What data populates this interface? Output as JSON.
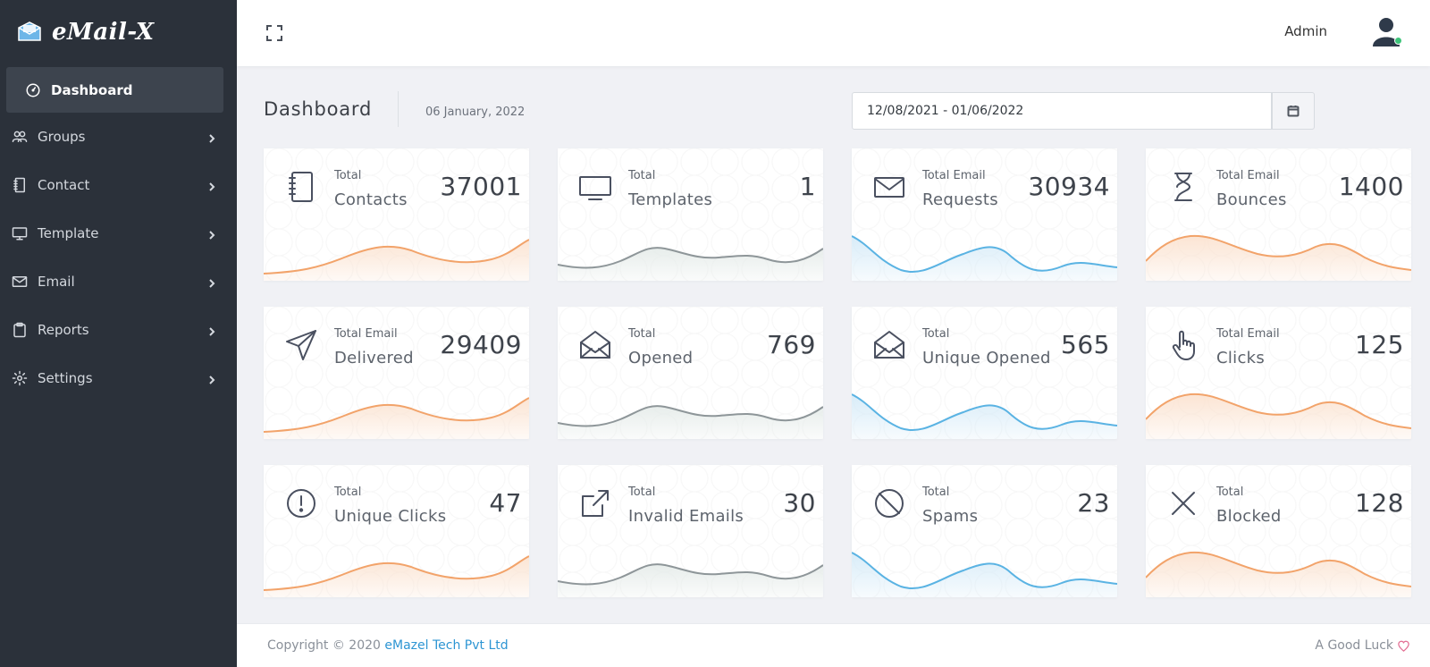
{
  "app": {
    "name": "eMail-X"
  },
  "sidebar": {
    "items": [
      {
        "label": "Dashboard",
        "icon": "dashboard-gauge-icon",
        "active": true
      },
      {
        "label": "Groups",
        "icon": "users-icon"
      },
      {
        "label": "Contact",
        "icon": "notebook-icon"
      },
      {
        "label": "Template",
        "icon": "monitor-icon"
      },
      {
        "label": "Email",
        "icon": "envelope-icon"
      },
      {
        "label": "Reports",
        "icon": "clipboard-icon"
      },
      {
        "label": "Settings",
        "icon": "gear-icon"
      }
    ]
  },
  "topbar": {
    "user": "Admin",
    "status_color": "#3ec47a"
  },
  "header": {
    "title": "Dashboard",
    "date": "06 January, 2022",
    "date_range": "12/08/2021 - 01/06/2022"
  },
  "colors": {
    "orange": "#f2a36a",
    "gray": "#8e9699",
    "blue": "#5ab3e3",
    "sidebar": "#2b313a",
    "accent_link": "#2d95d3"
  },
  "cards": [
    {
      "small": "Total",
      "label": "Contacts",
      "value": "37001",
      "icon": "notebook-icon",
      "wave": "orange"
    },
    {
      "small": "Total",
      "label": "Templates",
      "value": "1",
      "icon": "monitor-icon",
      "wave": "gray"
    },
    {
      "small": "Total Email",
      "label": "Requests",
      "value": "30934",
      "icon": "envelope-icon",
      "wave": "blue"
    },
    {
      "small": "Total Email",
      "label": "Bounces",
      "value": "1400",
      "icon": "hourglass-icon",
      "wave": "orange"
    },
    {
      "small": "Total Email",
      "label": "Delivered",
      "value": "29409",
      "icon": "paper-plane-icon",
      "wave": "orange"
    },
    {
      "small": "Total",
      "label": "Opened",
      "value": "769",
      "icon": "open-envelope-icon",
      "wave": "gray"
    },
    {
      "small": "Total",
      "label": "Unique Opened",
      "value": "565",
      "icon": "open-envelope-icon",
      "wave": "blue"
    },
    {
      "small": "Total Email",
      "label": "Clicks",
      "value": "125",
      "icon": "pointer-hand-icon",
      "wave": "orange"
    },
    {
      "small": "Total",
      "label": "Unique Clicks",
      "value": "47",
      "icon": "exclamation-circle-icon",
      "wave": "orange"
    },
    {
      "small": "Total",
      "label": "Invalid Emails",
      "value": "30",
      "icon": "external-link-icon",
      "wave": "gray"
    },
    {
      "small": "Total",
      "label": "Spams",
      "value": "23",
      "icon": "ban-icon",
      "wave": "blue"
    },
    {
      "small": "Total",
      "label": "Blocked",
      "value": "128",
      "icon": "x-icon",
      "wave": "orange"
    }
  ],
  "footer": {
    "copyright_prefix": "Copyright © 2020 ",
    "company": "eMazel Tech Pvt Ltd",
    "right_text": "A Good Luck"
  }
}
